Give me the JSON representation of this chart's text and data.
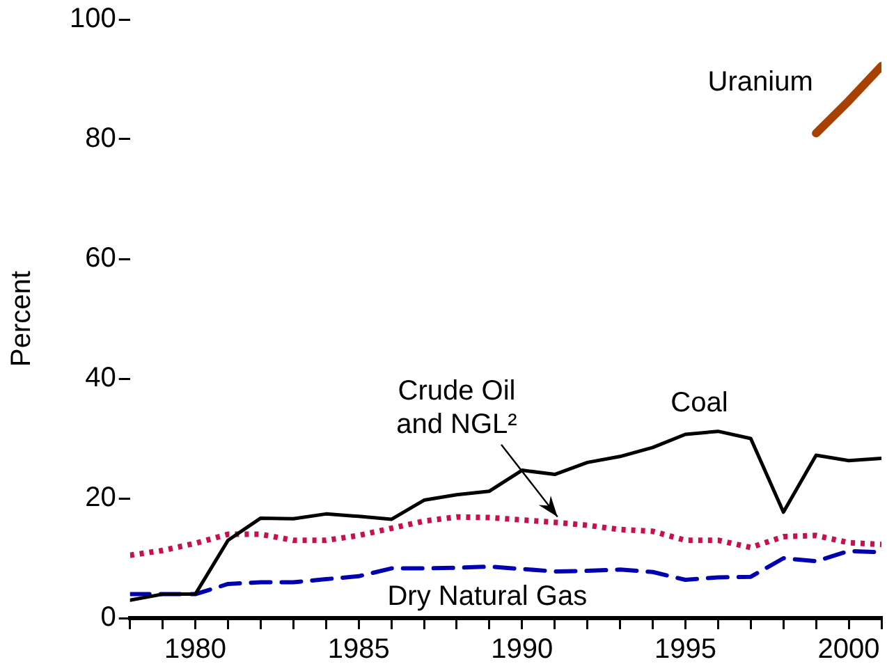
{
  "chart_data": {
    "type": "line",
    "ylabel": "Percent",
    "x": [
      1978,
      1979,
      1980,
      1981,
      1982,
      1983,
      1984,
      1985,
      1986,
      1987,
      1988,
      1989,
      1990,
      1991,
      1992,
      1993,
      1994,
      1995,
      1996,
      1997,
      1998,
      1999,
      2000,
      2001
    ],
    "xlim": [
      1978,
      2001
    ],
    "xticks": [
      {
        "value": 1978,
        "label": null
      },
      {
        "value": 1979,
        "label": null
      },
      1980,
      {
        "value": 1981,
        "label": null
      },
      {
        "value": 1982,
        "label": null
      },
      {
        "value": 1983,
        "label": null
      },
      {
        "value": 1984,
        "label": null
      },
      1985,
      {
        "value": 1986,
        "label": null
      },
      {
        "value": 1987,
        "label": null
      },
      {
        "value": 1988,
        "label": null
      },
      {
        "value": 1989,
        "label": null
      },
      1990,
      {
        "value": 1991,
        "label": null
      },
      {
        "value": 1992,
        "label": null
      },
      {
        "value": 1993,
        "label": null
      },
      {
        "value": 1994,
        "label": null
      },
      1995,
      {
        "value": 1996,
        "label": null
      },
      {
        "value": 1997,
        "label": null
      },
      {
        "value": 1998,
        "label": null
      },
      {
        "value": 1999,
        "label": null
      },
      2000,
      {
        "value": 2001,
        "label": null
      }
    ],
    "ylim": [
      0,
      100
    ],
    "yticks": [
      0,
      20,
      40,
      60,
      80,
      100
    ],
    "grid": false,
    "legend": false,
    "series": [
      {
        "name": "Coal",
        "color": "#000000",
        "line_style": "solid",
        "values": [
          3,
          4,
          4,
          13,
          16.7,
          16.6,
          17.4,
          17,
          16.5,
          19.7,
          20.6,
          21.2,
          24.7,
          24,
          26,
          27,
          28.5,
          30.7,
          31.2,
          30,
          17.7,
          27.2,
          26.3,
          26.7
        ]
      },
      {
        "name": "Crude Oil and NGL²",
        "color": "#c8104a",
        "line_style": "dotted",
        "values": [
          10.5,
          11.3,
          12.5,
          14,
          14,
          13,
          13,
          13.8,
          15,
          16.2,
          16.9,
          16.8,
          16.4,
          16,
          15.5,
          14.8,
          14.5,
          13,
          13,
          11.8,
          13.6,
          13.8,
          12.6,
          12.3
        ]
      },
      {
        "name": "Dry Natural Gas",
        "color": "#0000b0",
        "line_style": "dashed",
        "values": [
          4,
          4,
          4,
          5.7,
          6,
          6,
          6.5,
          7,
          8.3,
          8.3,
          8.4,
          8.6,
          8.2,
          7.8,
          7.9,
          8.1,
          7.7,
          6.4,
          6.8,
          6.9,
          10,
          9.5,
          11.2,
          11
        ]
      },
      {
        "name": "Uranium",
        "color": "#a84000",
        "line_style": "solid",
        "x": [
          1999,
          2000,
          2001
        ],
        "values": [
          81,
          86.4,
          92.2
        ]
      }
    ]
  }
}
